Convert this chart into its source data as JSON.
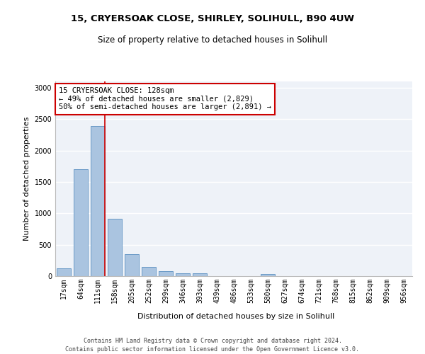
{
  "title_line1": "15, CRYERSOAK CLOSE, SHIRLEY, SOLIHULL, B90 4UW",
  "title_line2": "Size of property relative to detached houses in Solihull",
  "xlabel": "Distribution of detached houses by size in Solihull",
  "ylabel": "Number of detached properties",
  "categories": [
    "17sqm",
    "64sqm",
    "111sqm",
    "158sqm",
    "205sqm",
    "252sqm",
    "299sqm",
    "346sqm",
    "393sqm",
    "439sqm",
    "486sqm",
    "533sqm",
    "580sqm",
    "627sqm",
    "674sqm",
    "721sqm",
    "768sqm",
    "815sqm",
    "862sqm",
    "909sqm",
    "956sqm"
  ],
  "values": [
    120,
    1700,
    2390,
    910,
    355,
    145,
    80,
    50,
    40,
    0,
    0,
    0,
    30,
    0,
    0,
    0,
    0,
    0,
    0,
    0,
    0
  ],
  "bar_color": "#aac4e0",
  "bar_edge_color": "#5a8fc0",
  "vline_color": "#cc0000",
  "annotation_text": "15 CRYERSOAK CLOSE: 128sqm\n← 49% of detached houses are smaller (2,829)\n50% of semi-detached houses are larger (2,891) →",
  "annotation_box_color": "#ffffff",
  "annotation_box_edgecolor": "#cc0000",
  "ylim": [
    0,
    3100
  ],
  "yticks": [
    0,
    500,
    1000,
    1500,
    2000,
    2500,
    3000
  ],
  "background_color": "#eef2f8",
  "grid_color": "#ffffff",
  "footer_text": "Contains HM Land Registry data © Crown copyright and database right 2024.\nContains public sector information licensed under the Open Government Licence v3.0.",
  "title_fontsize": 9.5,
  "subtitle_fontsize": 8.5,
  "xlabel_fontsize": 8,
  "ylabel_fontsize": 8,
  "tick_fontsize": 7,
  "annotation_fontsize": 7.5,
  "footer_fontsize": 6
}
